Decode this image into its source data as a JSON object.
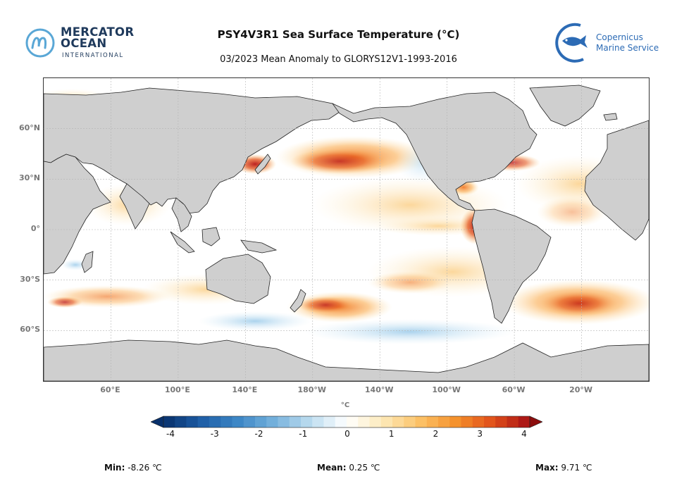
{
  "header": {
    "title": "PSY4V3R1 Sea Surface Temperature (°C)",
    "subtitle": "03/2023 Mean Anomaly to GLORYS12V1-1993-2016"
  },
  "logos": {
    "left": {
      "line1": "MERCATOR",
      "line2": "OCEAN",
      "line3": "INTERNATIONAL",
      "color": "#1f3a5c",
      "accent": "#5aa7d6"
    },
    "right": {
      "line1": "Copernicus",
      "line2": "Marine Service",
      "color": "#2c6bb5"
    }
  },
  "map": {
    "projection": "equirectangular",
    "land_color": "#cfcfcf",
    "ocean_color": "#ffffff",
    "lat_labels": [
      "60°N",
      "30°N",
      "0°",
      "30°S",
      "60°S"
    ],
    "lat_values": [
      60,
      30,
      0,
      -30,
      -60
    ],
    "lon_labels": [
      "60°E",
      "100°E",
      "140°E",
      "180°W",
      "140°W",
      "100°W",
      "60°W",
      "20°W"
    ],
    "lon_values": [
      60,
      100,
      140,
      180,
      220,
      260,
      300,
      340
    ],
    "lon_range": [
      20,
      380
    ],
    "lat_range": [
      -90,
      90
    ]
  },
  "colorbar": {
    "unit": "°C",
    "ticks": [
      "-4",
      "-3",
      "-2",
      "-1",
      "0",
      "1",
      "2",
      "3",
      "4"
    ],
    "range": [
      -4,
      4
    ],
    "colors": [
      "#08306b",
      "#1d5ca5",
      "#3b86c5",
      "#74b0dc",
      "#bcdcef",
      "#ffffff",
      "#fde9b8",
      "#fcc267",
      "#f5902b",
      "#e04f1a",
      "#a50f15"
    ]
  },
  "stats": {
    "min_label": "Min:",
    "min_value": "-8.26 ℃",
    "mean_label": "Mean:",
    "mean_value": "0.25 ℃",
    "max_label": "Max:",
    "max_value": "9.71 ℃"
  }
}
